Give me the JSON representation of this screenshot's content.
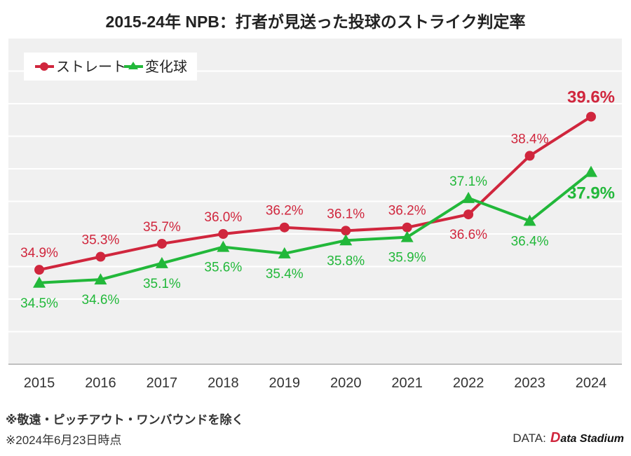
{
  "title": "2015-24年 NPB：打者が見送った投球のストライク判定率",
  "notes": [
    "※敬遠・ピッチアウト・ワンバウンドを除く",
    "※2024年6月23日時点"
  ],
  "source_label": "DATA:",
  "source_logo": "Data Stadium",
  "colors": {
    "straight": "#d0263d",
    "breaking": "#22b83a",
    "plot_bg": "#f0f0f0"
  },
  "chart_data": {
    "type": "line",
    "title": "2015-24年 NPB：打者が見送った投球のストライク判定率",
    "categories": [
      "2015",
      "2016",
      "2017",
      "2018",
      "2019",
      "2020",
      "2021",
      "2022",
      "2023",
      "2024"
    ],
    "ylim": [
      32,
      42
    ],
    "grid": true,
    "legend_position": "top-left",
    "series": [
      {
        "name": "ストレート",
        "marker": "circle",
        "values": [
          34.9,
          35.3,
          35.7,
          36.0,
          36.2,
          36.1,
          36.2,
          36.6,
          38.4,
          39.6
        ],
        "labels": [
          "34.9%",
          "35.3%",
          "35.7%",
          "36.0%",
          "36.2%",
          "36.1%",
          "36.2%",
          "36.6%",
          "38.4%",
          "39.6%"
        ]
      },
      {
        "name": "変化球",
        "marker": "triangle",
        "values": [
          34.5,
          34.6,
          35.1,
          35.6,
          35.4,
          35.8,
          35.9,
          37.1,
          36.4,
          37.9
        ],
        "labels": [
          "34.5%",
          "34.6%",
          "35.1%",
          "35.6%",
          "35.4%",
          "35.8%",
          "35.9%",
          "37.1%",
          "36.4%",
          "37.9%"
        ]
      }
    ]
  }
}
